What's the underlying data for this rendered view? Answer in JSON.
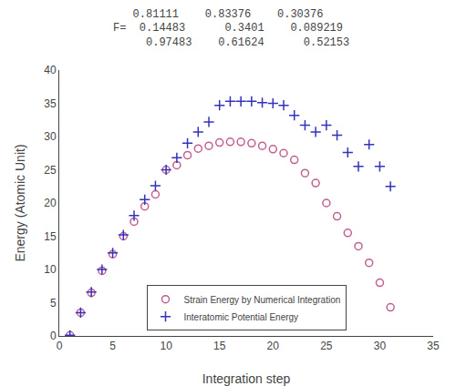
{
  "chart_data": {
    "type": "scatter",
    "title": "      0.81111    0.83376    0.30376\nF=  0.14483      0.3401    0.089219\n      0.97483    0.61624      0.52153",
    "x_label": "Integration step",
    "y_label": "Energy (Atomic Unit)",
    "x": [
      1,
      2,
      3,
      4,
      5,
      6,
      7,
      8,
      9,
      10,
      11,
      12,
      13,
      14,
      15,
      16,
      17,
      18,
      19,
      20,
      21,
      22,
      23,
      24,
      25,
      26,
      27,
      28,
      29,
      30,
      31
    ],
    "series": [
      {
        "name": "Strain Energy by Numerical Integration",
        "color": "#c06090",
        "marker": "open circle",
        "values": [
          0.1,
          3.5,
          6.5,
          9.8,
          12.3,
          15.0,
          17.2,
          19.5,
          21.3,
          25.0,
          25.7,
          27.2,
          28.2,
          28.6,
          29.1,
          29.2,
          29.2,
          29.0,
          28.6,
          28.1,
          27.5,
          26.5,
          24.5,
          23.0,
          20.0,
          18.0,
          15.5,
          13.5,
          11.0,
          8.0,
          4.3
        ]
      },
      {
        "name": "Interatomic Potential Energy",
        "color": "#3333bb",
        "marker": "plus",
        "values": [
          0.1,
          3.5,
          6.6,
          10.0,
          12.5,
          15.2,
          18.1,
          20.5,
          22.6,
          25.0,
          26.8,
          29.0,
          30.7,
          32.2,
          34.7,
          35.3,
          35.3,
          35.3,
          35.1,
          35.0,
          34.7,
          33.2,
          31.7,
          30.7,
          31.7,
          30.2,
          27.6,
          25.5,
          28.8,
          25.5,
          22.5
        ]
      }
    ],
    "xlim": [
      0,
      35
    ],
    "ylim": [
      0,
      40
    ],
    "xticks": [
      0,
      5,
      10,
      15,
      20,
      25,
      30,
      35
    ],
    "yticks": [
      0,
      5,
      10,
      15,
      20,
      25,
      30,
      35,
      40
    ],
    "grid": false,
    "legend": "lower center"
  }
}
